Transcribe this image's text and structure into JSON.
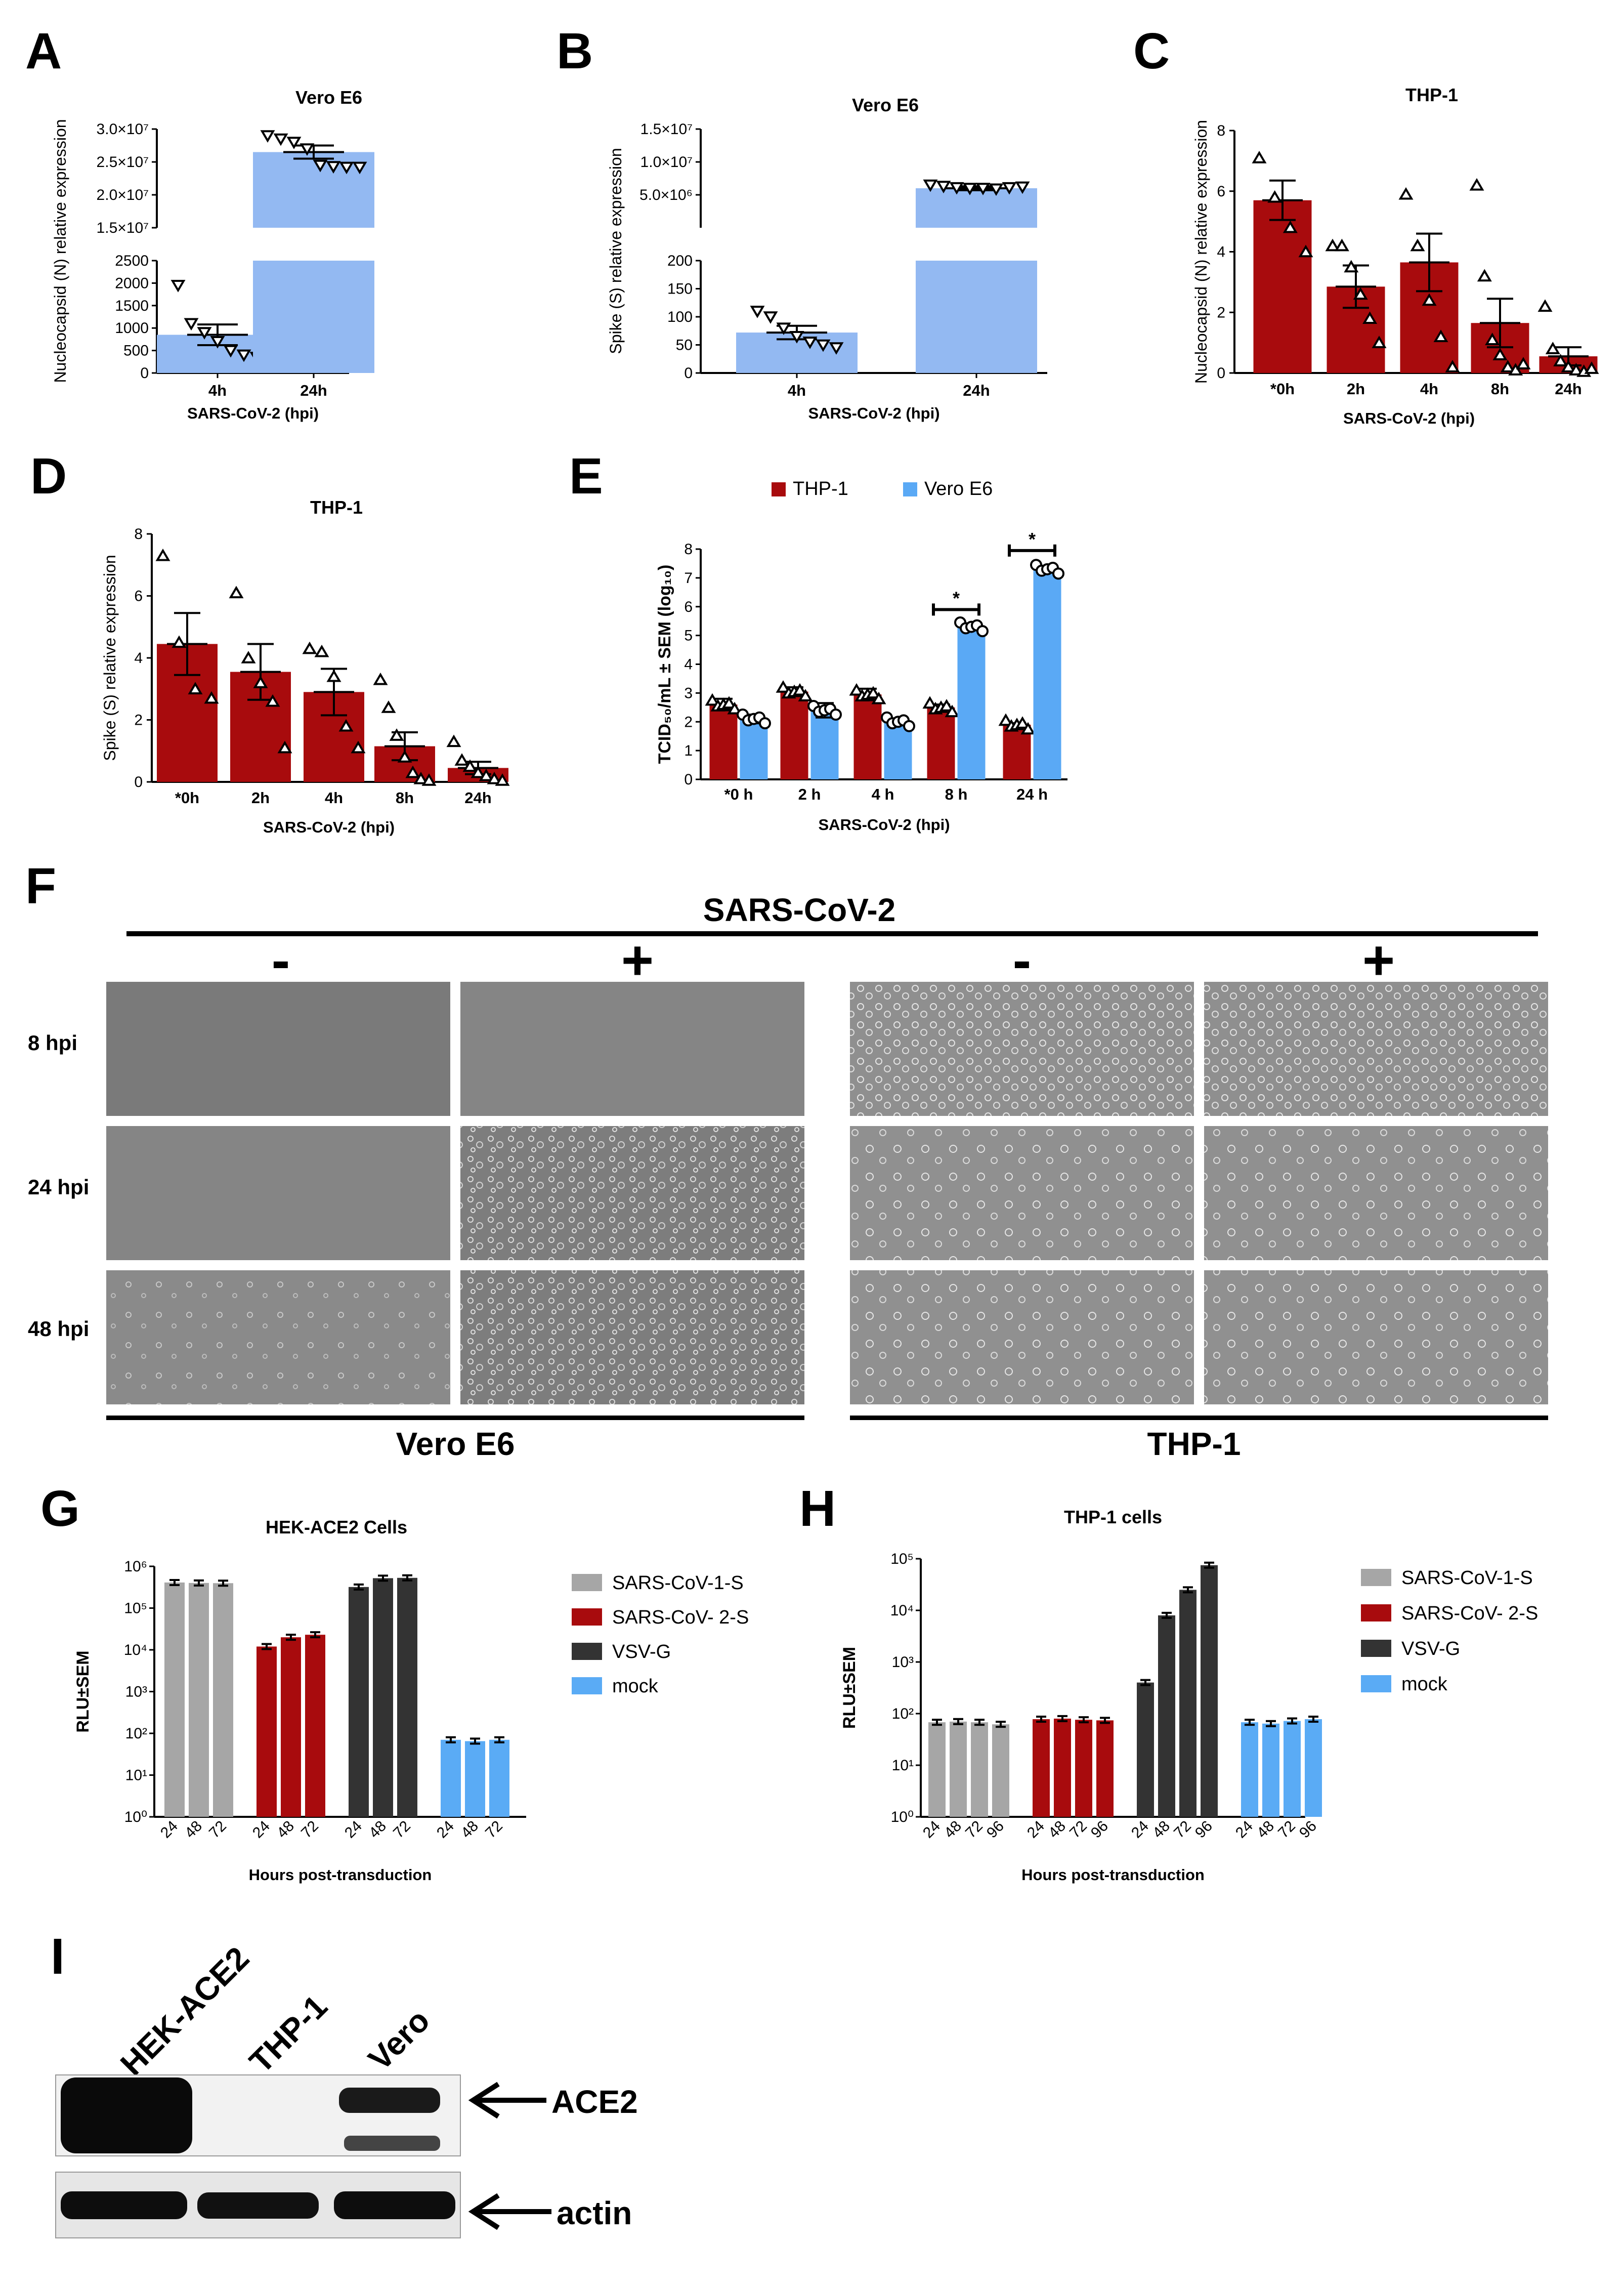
{
  "colors": {
    "blue": "#93b9f2",
    "red": "#a80b0d",
    "grey": "#a6a6a6",
    "dark": "#333333",
    "mock": "#5aabf5",
    "vero_blue": "#5aa9f5"
  },
  "panel_labels": [
    "A",
    "B",
    "C",
    "D",
    "E",
    "F",
    "G",
    "H",
    "I"
  ],
  "panel_F": {
    "title": "SARS-CoV-2",
    "signs": [
      "-",
      "+",
      "-",
      "+"
    ],
    "rows": [
      "8 hpi",
      "24 hpi",
      "48 hpi"
    ],
    "groups": [
      "Vero E6",
      "THP-1"
    ]
  },
  "panel_I": {
    "lanes": [
      "HEK-ACE2",
      "THP-1",
      "Vero"
    ],
    "bands": [
      "ACE2",
      "actin"
    ]
  },
  "chart_data": [
    {
      "id": "A",
      "type": "bar",
      "title": "Vero E6",
      "xlabel": "SARS-CoV-2 (hpi)",
      "ylabel": "Nucleocapsid (N) relative expression",
      "categories": [
        "4h",
        "24h"
      ],
      "values": [
        850,
        26500000
      ],
      "sem": [
        230,
        1000000
      ],
      "ylim_lower": [
        0,
        2500
      ],
      "yticks_lower": [
        "0",
        "500",
        "1000",
        "1500",
        "2000",
        "2500"
      ],
      "ylim_upper": [
        15000000,
        30000000
      ],
      "yticks_upper": [
        "1.5×10⁷",
        "2.0×10⁷",
        "2.5×10⁷",
        "3.0×10⁷"
      ],
      "points": [
        [
          1950,
          1100,
          900,
          700,
          500,
          400,
          350
        ],
        [
          29000000,
          28500000,
          28000000,
          27000000,
          24500000,
          24300000,
          24200000,
          24200000
        ]
      ]
    },
    {
      "id": "B",
      "type": "bar",
      "title": "Vero E6",
      "xlabel": "SARS-CoV-2 (hpi)",
      "ylabel": "Spike (S) relative expression",
      "categories": [
        "4h",
        "24h"
      ],
      "values": [
        72,
        6000000
      ],
      "sem": [
        12,
        300000
      ],
      "ylim_lower": [
        0,
        200
      ],
      "yticks_lower": [
        "0",
        "50",
        "100",
        "150",
        "200"
      ],
      "ylim_upper": [
        0,
        15000000
      ],
      "yticks_upper": [
        "5.0×10⁶",
        "1.0×10⁷",
        "1.5×10⁷"
      ],
      "points": [
        [
          110,
          100,
          80,
          65,
          55,
          50,
          45
        ],
        [
          6500000,
          6300000,
          6100000,
          6000000,
          6000000,
          5900000,
          6100000,
          6200000
        ]
      ]
    },
    {
      "id": "C",
      "type": "bar",
      "title": "THP-1",
      "xlabel": "SARS-CoV-2 (hpi)",
      "ylabel": "Nucleocapsid (N) relative expression",
      "categories": [
        "*0h",
        "2h",
        "4h",
        "8h",
        "24h"
      ],
      "values": [
        5.7,
        2.85,
        3.65,
        1.65,
        0.55
      ],
      "sem": [
        0.65,
        0.7,
        0.95,
        0.8,
        0.3
      ],
      "ylim": [
        0,
        8
      ],
      "yticks": [
        "0",
        "2",
        "4",
        "6",
        "8"
      ],
      "points": [
        [
          7.1,
          5.8,
          4.8,
          4.0
        ],
        [
          4.2,
          4.2,
          3.5,
          2.6,
          1.8,
          1.0
        ],
        [
          5.9,
          4.2,
          2.4,
          1.2,
          0.2
        ],
        [
          6.2,
          3.2,
          1.1,
          0.6,
          0.2,
          0.1,
          0.3
        ],
        [
          2.2,
          0.8,
          0.4,
          0.2,
          0.1,
          0.05,
          0.15
        ]
      ]
    },
    {
      "id": "D",
      "type": "bar",
      "title": "THP-1",
      "xlabel": "SARS-CoV-2 (hpi)",
      "ylabel": "Spike (S) relative expression",
      "categories": [
        "*0h",
        "2h",
        "4h",
        "8h",
        "24h"
      ],
      "values": [
        4.45,
        3.55,
        2.9,
        1.15,
        0.45
      ],
      "sem": [
        1.0,
        0.9,
        0.75,
        0.45,
        0.2
      ],
      "ylim": [
        0,
        8
      ],
      "yticks": [
        "0",
        "2",
        "4",
        "6",
        "8"
      ],
      "points": [
        [
          7.3,
          4.5,
          3.0,
          2.7
        ],
        [
          6.1,
          4.0,
          3.2,
          2.6,
          1.1
        ],
        [
          4.3,
          4.2,
          3.4,
          1.8,
          1.1
        ],
        [
          3.3,
          2.4,
          1.5,
          0.8,
          0.3,
          0.1,
          0.05
        ],
        [
          1.3,
          0.7,
          0.5,
          0.3,
          0.2,
          0.1,
          0.05
        ]
      ]
    },
    {
      "id": "E",
      "type": "bar",
      "xlabel": "SARS-CoV-2 (hpi)",
      "ylabel": "TCID₅₀/mL ± SEM (log₁₀)",
      "categories": [
        "*0 h",
        "2 h",
        "4 h",
        "8 h",
        "24 h"
      ],
      "series": [
        {
          "name": "THP-1",
          "values": [
            2.6,
            3.05,
            2.95,
            2.5,
            1.9
          ],
          "sem": [
            0.2,
            0.15,
            0.2,
            0.1,
            0.05
          ]
        },
        {
          "name": "Vero E6",
          "values": [
            2.1,
            2.4,
            2.0,
            5.3,
            7.3
          ],
          "sem": [
            0.15,
            0.25,
            0.1,
            0.1,
            0.1
          ]
        }
      ],
      "ylim": [
        0,
        8
      ],
      "yticks": [
        "0",
        "1",
        "2",
        "3",
        "4",
        "5",
        "6",
        "7",
        "8"
      ],
      "annotations": [
        "*",
        "*"
      ]
    },
    {
      "id": "G",
      "type": "bar",
      "title": "HEK-ACE2 Cells",
      "xlabel": "Hours post-transduction",
      "ylabel": "RLU±SEM",
      "yscale": "log",
      "ylim": [
        1,
        1000000
      ],
      "yticks": [
        "10⁰",
        "10¹",
        "10²",
        "10³",
        "10⁴",
        "10⁵",
        "10⁶"
      ],
      "categories": [
        "24",
        "48",
        "72"
      ],
      "series": [
        {
          "name": "SARS-CoV-1-S",
          "values": [
            410000,
            400000,
            395000
          ]
        },
        {
          "name": "SARS-CoV- 2-S",
          "values": [
            12000,
            20000,
            23000
          ]
        },
        {
          "name": "VSV-G",
          "values": [
            320000,
            520000,
            530000
          ]
        },
        {
          "name": "mock",
          "values": [
            70,
            65,
            70
          ]
        }
      ]
    },
    {
      "id": "H",
      "type": "bar",
      "title": "THP-1 cells",
      "xlabel": "Hours post-transduction",
      "ylabel": "RLU±SEM",
      "yscale": "log",
      "ylim": [
        1,
        100000
      ],
      "yticks": [
        "10⁰",
        "10¹",
        "10²",
        "10³",
        "10⁴",
        "10⁵"
      ],
      "categories": [
        "24",
        "48",
        "72",
        "96"
      ],
      "series": [
        {
          "name": "SARS-CoV-1-S",
          "values": [
            68,
            70,
            68,
            62
          ]
        },
        {
          "name": "SARS-CoV- 2-S",
          "values": [
            78,
            80,
            76,
            74
          ]
        },
        {
          "name": "VSV-G",
          "values": [
            400,
            8000,
            25000,
            75000
          ]
        },
        {
          "name": "mock",
          "values": [
            68,
            64,
            72,
            78
          ]
        }
      ]
    }
  ]
}
